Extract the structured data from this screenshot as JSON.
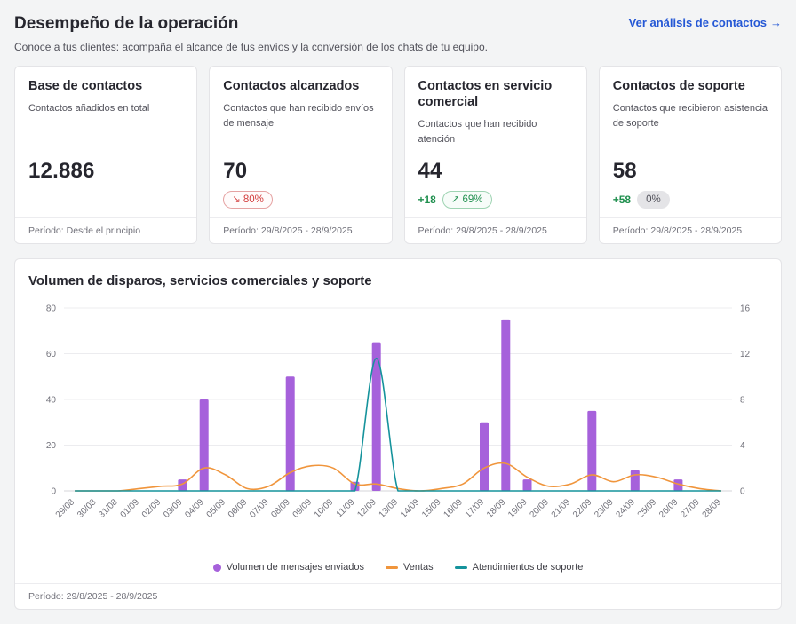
{
  "colors": {
    "link_blue": "#2457d5",
    "negative_red": "#d23b3b",
    "positive_green": "#1f8f4e",
    "bar_purple": "#a661db",
    "line_orange": "#f0953c",
    "line_teal": "#15939c"
  },
  "header": {
    "title": "Desempeño de la operación",
    "subtitle": "Conoce a tus clientes: acompaña el alcance de tus envíos y la conversión de los chats de tu equipo.",
    "link_label": "Ver análisis de contactos",
    "link_arrow": "→"
  },
  "cards": [
    {
      "title": "Base de contactos",
      "description": "Contactos añadidos en total",
      "value": "12.886",
      "period": "Período: Desde el principio"
    },
    {
      "title": "Contactos alcanzados",
      "description": "Contactos que han recibido envíos de mensaje",
      "value": "70",
      "badge_arrow": "↘",
      "badge_text": "80%",
      "period": "Período: 29/8/2025 - 28/9/2025"
    },
    {
      "title": "Contactos en servicio comercial",
      "description": "Contactos que han recibido atención",
      "value": "44",
      "delta": "+18",
      "badge_arrow": "↗",
      "badge_text": "69%",
      "period": "Período: 29/8/2025 - 28/9/2025"
    },
    {
      "title": "Contactos de soporte",
      "description": "Contactos que recibieron asistencia de soporte",
      "value": "58",
      "delta": "+58",
      "badge_text": "0%",
      "period": "Período: 29/8/2025 - 28/9/2025"
    }
  ],
  "chart_card": {
    "title": "Volumen de disparos, servicios comerciales y soporte",
    "period": "Período: 29/8/2025 - 28/9/2025"
  },
  "chart_data": {
    "type": "combo-bar-line",
    "categories": [
      "29/08",
      "30/08",
      "31/08",
      "01/09",
      "02/09",
      "03/09",
      "04/09",
      "05/09",
      "06/09",
      "07/09",
      "08/09",
      "09/09",
      "10/09",
      "11/09",
      "12/09",
      "13/09",
      "14/09",
      "15/09",
      "16/09",
      "17/09",
      "18/09",
      "19/09",
      "20/09",
      "21/09",
      "22/09",
      "23/09",
      "24/09",
      "25/09",
      "26/09",
      "27/09",
      "28/09"
    ],
    "left_axis": {
      "ticks": [
        0,
        20,
        40,
        60,
        80
      ],
      "max": 80
    },
    "right_axis": {
      "ticks": [
        0,
        4,
        8,
        12,
        16
      ],
      "max": 16
    },
    "legend_position": "bottom",
    "series": [
      {
        "name": "Volumen de mensajes enviados",
        "type": "bar",
        "axis": "left",
        "color": "#a661db",
        "values": [
          0,
          0,
          0,
          0,
          0,
          5,
          40,
          0,
          0,
          0,
          50,
          0,
          0,
          4,
          65,
          0,
          0,
          0,
          0,
          30,
          75,
          5,
          0,
          0,
          35,
          0,
          9,
          0,
          5,
          0,
          0
        ]
      },
      {
        "name": "Ventas",
        "type": "line",
        "axis": "right",
        "color": "#f0953c",
        "values": [
          0,
          0,
          0,
          0.2,
          0.4,
          0.6,
          2,
          1.4,
          0.2,
          0.4,
          1.6,
          2.2,
          2,
          0.6,
          0.6,
          0.2,
          0,
          0.2,
          0.6,
          2,
          2.4,
          1.2,
          0.4,
          0.6,
          1.4,
          0.8,
          1.4,
          1.2,
          0.6,
          0.2,
          0
        ]
      },
      {
        "name": "Atendimientos de soporte",
        "type": "line",
        "axis": "right",
        "color": "#15939c",
        "values": [
          0,
          0,
          0,
          0,
          0,
          0,
          0,
          0,
          0,
          0,
          0,
          0,
          0,
          0,
          11.6,
          0,
          0,
          0,
          0,
          0,
          0,
          0,
          0,
          0,
          0,
          0,
          0,
          0,
          0,
          0,
          0
        ]
      }
    ]
  }
}
